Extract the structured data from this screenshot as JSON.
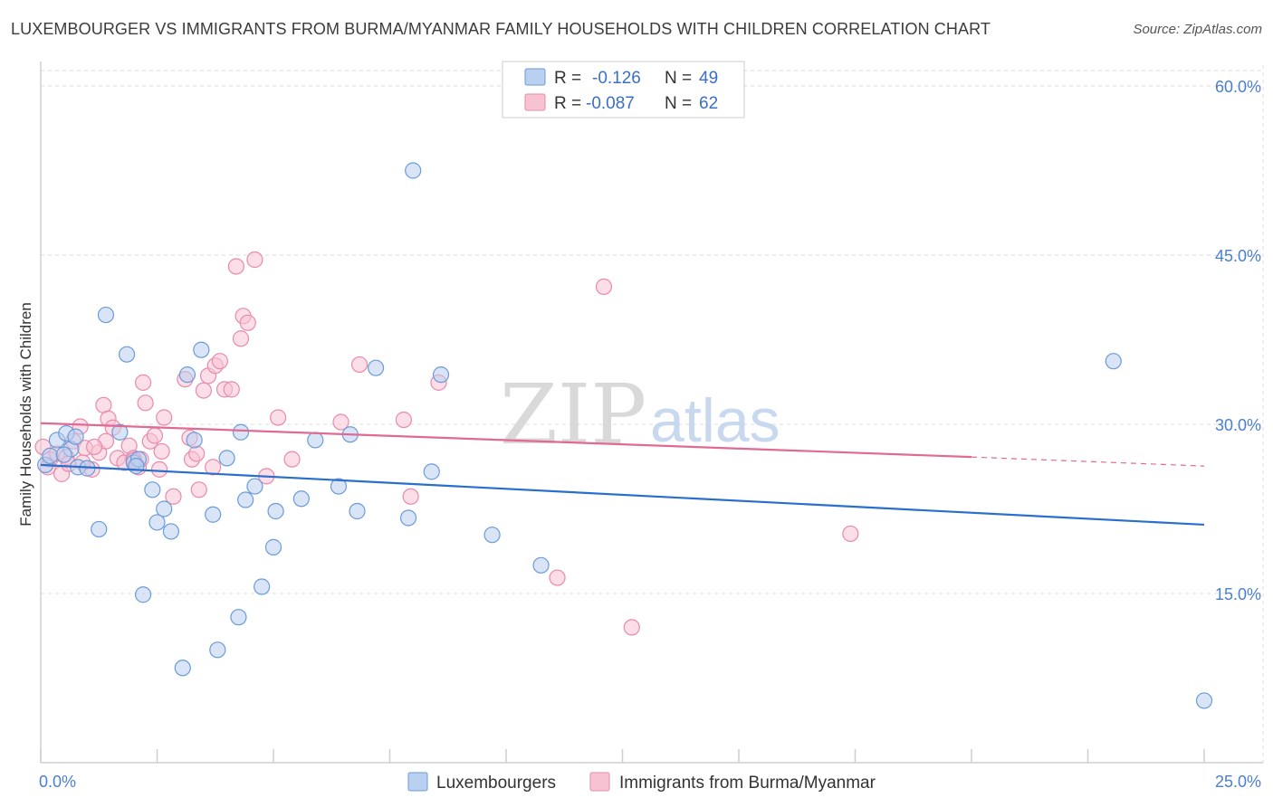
{
  "title": "LUXEMBOURGER VS IMMIGRANTS FROM BURMA/MYANMAR FAMILY HOUSEHOLDS WITH CHILDREN CORRELATION CHART",
  "source": "Source: ZipAtlas.com",
  "watermark": {
    "part1": "ZIP",
    "part2": "atlas"
  },
  "colors": {
    "blue_fill": "#b9d0f0",
    "blue_stroke": "#6b9bd8",
    "blue_line": "#2a6fcb",
    "pink_fill": "#f7c3d3",
    "pink_stroke": "#e98aaa",
    "pink_line": "#e06a94",
    "axis_text": "#4a7fd1",
    "grid": "#dcdcdc"
  },
  "legend": {
    "rows": [
      {
        "r_label": "R =",
        "r_value": "-0.126",
        "n_label": "N =",
        "n_value": "49"
      },
      {
        "r_label": "R =",
        "r_value": "-0.087",
        "n_label": "N =",
        "n_value": "62"
      }
    ]
  },
  "bottom_legend": [
    "Luxembourgers",
    "Immigrants from Burma/Myanmar"
  ],
  "chart_data": {
    "type": "scatter",
    "title": "LUXEMBOURGER VS IMMIGRANTS FROM BURMA/MYANMAR FAMILY HOUSEHOLDS WITH CHILDREN CORRELATION CHART",
    "xlabel": "",
    "ylabel": "Family Households with Children",
    "xlim": [
      0,
      25
    ],
    "ylim": [
      0,
      61.5
    ],
    "x_tick_labels": [
      "0.0%",
      "25.0%"
    ],
    "y_ticks": [
      15,
      30,
      45,
      60
    ],
    "y_tick_labels": [
      "15.0%",
      "30.0%",
      "45.0%",
      "60.0%"
    ],
    "grid": true,
    "legend_placement": "top-center",
    "series": [
      {
        "name": "Luxembourgers",
        "r": -0.126,
        "n": 49,
        "trend": {
          "x": [
            0.0,
            25.0
          ],
          "y": [
            26.4,
            21.1
          ]
        },
        "points": [
          [
            0.1,
            26.4
          ],
          [
            0.2,
            27.2
          ],
          [
            0.35,
            28.6
          ],
          [
            0.55,
            29.2
          ],
          [
            0.65,
            27.8
          ],
          [
            0.75,
            28.9
          ],
          [
            0.8,
            26.2
          ],
          [
            1.0,
            26.1
          ],
          [
            1.25,
            20.7
          ],
          [
            1.4,
            39.7
          ],
          [
            1.7,
            29.3
          ],
          [
            1.85,
            36.2
          ],
          [
            2.0,
            26.6
          ],
          [
            2.1,
            26.9
          ],
          [
            2.2,
            14.9
          ],
          [
            2.4,
            24.2
          ],
          [
            2.5,
            21.3
          ],
          [
            2.65,
            22.5
          ],
          [
            2.8,
            20.5
          ],
          [
            3.05,
            8.4
          ],
          [
            3.15,
            34.4
          ],
          [
            3.3,
            28.6
          ],
          [
            3.45,
            36.6
          ],
          [
            3.7,
            22.0
          ],
          [
            3.8,
            10.0
          ],
          [
            4.0,
            27.0
          ],
          [
            4.25,
            12.9
          ],
          [
            4.3,
            29.3
          ],
          [
            4.4,
            23.3
          ],
          [
            4.6,
            24.5
          ],
          [
            4.75,
            15.6
          ],
          [
            5.0,
            19.1
          ],
          [
            5.05,
            22.3
          ],
          [
            5.6,
            23.4
          ],
          [
            5.9,
            28.6
          ],
          [
            6.4,
            24.5
          ],
          [
            6.65,
            29.1
          ],
          [
            6.8,
            22.3
          ],
          [
            7.2,
            35.0
          ],
          [
            7.9,
            21.7
          ],
          [
            8.0,
            52.5
          ],
          [
            8.6,
            34.4
          ],
          [
            8.4,
            25.8
          ],
          [
            9.7,
            20.2
          ],
          [
            10.75,
            17.5
          ],
          [
            23.05,
            35.6
          ],
          [
            25.0,
            5.5
          ],
          [
            0.5,
            27.3
          ],
          [
            2.05,
            26.3
          ]
        ]
      },
      {
        "name": "Immigrants from Burma/Myanmar",
        "r": -0.087,
        "n": 62,
        "trend": {
          "x": [
            0.0,
            20.0
          ],
          "y": [
            30.1,
            27.1
          ]
        },
        "trend_dashed": {
          "x": [
            20.0,
            25.0
          ],
          "y": [
            27.1,
            26.3
          ]
        },
        "points": [
          [
            0.05,
            28.0
          ],
          [
            0.2,
            26.9
          ],
          [
            0.35,
            27.4
          ],
          [
            0.45,
            25.6
          ],
          [
            0.55,
            27.1
          ],
          [
            0.6,
            26.5
          ],
          [
            0.7,
            28.5
          ],
          [
            0.85,
            29.8
          ],
          [
            0.95,
            27.9
          ],
          [
            1.1,
            26.0
          ],
          [
            1.25,
            27.5
          ],
          [
            1.4,
            28.5
          ],
          [
            1.35,
            31.7
          ],
          [
            1.45,
            30.5
          ],
          [
            1.55,
            29.7
          ],
          [
            1.65,
            27.0
          ],
          [
            1.8,
            26.6
          ],
          [
            1.9,
            28.1
          ],
          [
            2.0,
            27.0
          ],
          [
            2.1,
            26.2
          ],
          [
            2.15,
            26.9
          ],
          [
            2.2,
            33.7
          ],
          [
            2.25,
            31.9
          ],
          [
            2.35,
            28.5
          ],
          [
            2.45,
            29.0
          ],
          [
            2.55,
            26.0
          ],
          [
            2.6,
            27.6
          ],
          [
            2.65,
            30.6
          ],
          [
            2.85,
            23.6
          ],
          [
            3.1,
            34.0
          ],
          [
            3.2,
            28.8
          ],
          [
            3.25,
            26.9
          ],
          [
            3.35,
            27.4
          ],
          [
            3.4,
            24.2
          ],
          [
            3.5,
            33.0
          ],
          [
            3.6,
            34.3
          ],
          [
            3.7,
            26.2
          ],
          [
            3.75,
            35.2
          ],
          [
            3.85,
            35.6
          ],
          [
            3.95,
            33.1
          ],
          [
            4.1,
            33.1
          ],
          [
            4.2,
            44.0
          ],
          [
            4.3,
            37.6
          ],
          [
            4.35,
            39.6
          ],
          [
            4.45,
            39.0
          ],
          [
            4.6,
            44.6
          ],
          [
            4.85,
            25.4
          ],
          [
            5.1,
            30.6
          ],
          [
            5.4,
            26.9
          ],
          [
            6.45,
            30.2
          ],
          [
            6.85,
            35.3
          ],
          [
            7.8,
            30.4
          ],
          [
            7.95,
            23.6
          ],
          [
            8.55,
            33.7
          ],
          [
            11.1,
            16.4
          ],
          [
            12.1,
            42.2
          ],
          [
            12.7,
            12.0
          ],
          [
            17.4,
            20.3
          ],
          [
            0.15,
            26.2
          ],
          [
            1.15,
            28.0
          ],
          [
            2.0,
            26.8
          ],
          [
            0.9,
            26.6
          ]
        ]
      }
    ]
  }
}
